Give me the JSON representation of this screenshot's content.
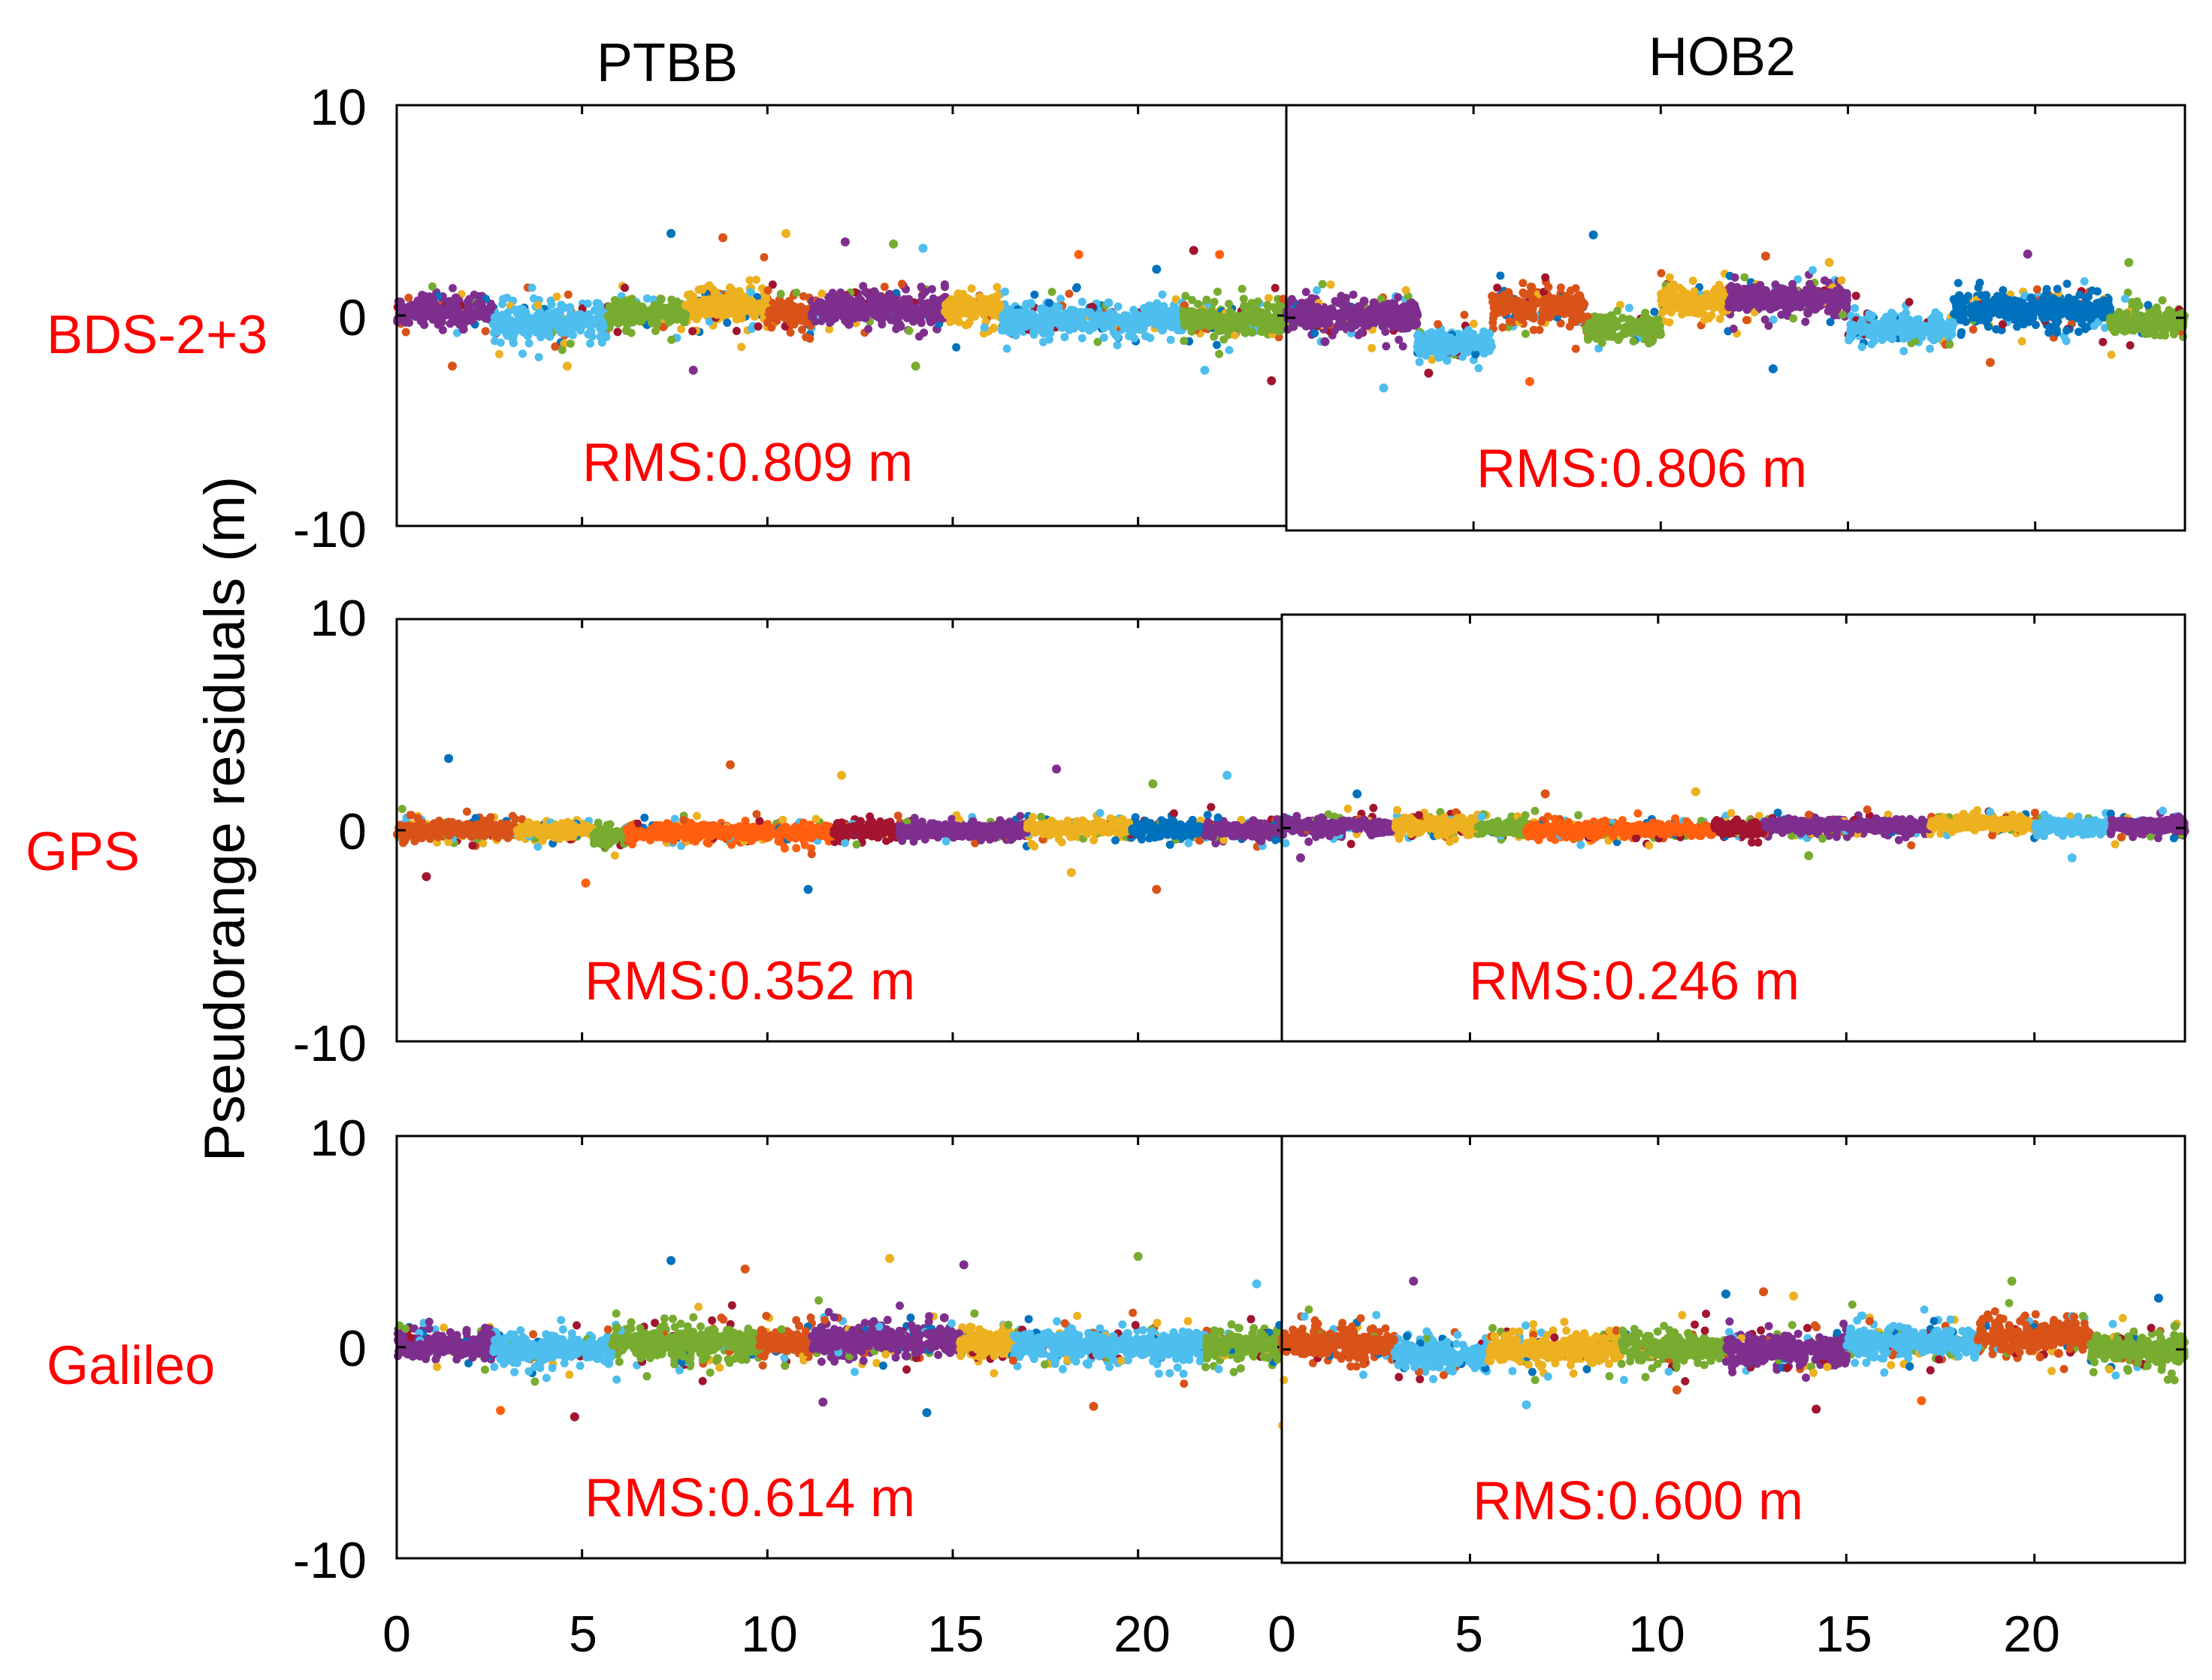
{
  "figure": {
    "ylabel": "Pseudorange residuals (m)",
    "columns": [
      "PTBB",
      "HOB2"
    ],
    "rows": [
      {
        "label": "BDS-2+3",
        "rms": [
          "RMS:0.809 m",
          "RMS:0.806 m"
        ]
      },
      {
        "label": "GPS",
        "rms": [
          "RMS:0.352 m",
          "RMS:0.246 m"
        ]
      },
      {
        "label": "Galileo",
        "rms": [
          "RMS:0.614 m",
          "RMS:0.600 m"
        ]
      }
    ],
    "colors": {
      "label": "#ff0000",
      "axis": "#000000",
      "series": [
        "#0072BD",
        "#D95319",
        "#EDB120",
        "#7E2F8E",
        "#77AC30",
        "#4DBEEE",
        "#A2142F",
        "#FF5F0E"
      ]
    }
  },
  "chart_data": [
    {
      "type": "scatter",
      "station": "PTBB",
      "system": "BDS-2+3",
      "xlabel": "",
      "ylabel": "Pseudorange residuals (m)",
      "xlim": [
        0,
        24
      ],
      "ylim": [
        -10,
        10
      ],
      "xticks": [
        0,
        5,
        10,
        15,
        20
      ],
      "yticks": [
        -10,
        0,
        10
      ],
      "rms": 0.809,
      "segments": [
        {
          "x0": 0.0,
          "x1": 2.6,
          "center": 0.2,
          "spread": 0.85,
          "color": 3
        },
        {
          "x0": 2.6,
          "x1": 5.7,
          "center": -0.3,
          "spread": 0.9,
          "color": 5
        },
        {
          "x0": 5.7,
          "x1": 7.8,
          "center": 0.1,
          "spread": 0.8,
          "color": 4
        },
        {
          "x0": 7.8,
          "x1": 10.0,
          "center": 0.5,
          "spread": 0.9,
          "color": 2
        },
        {
          "x0": 10.0,
          "x1": 11.2,
          "center": 0.2,
          "spread": 0.85,
          "color": 1
        },
        {
          "x0": 11.2,
          "x1": 14.8,
          "center": 0.3,
          "spread": 0.9,
          "color": 3
        },
        {
          "x0": 14.8,
          "x1": 16.3,
          "center": 0.3,
          "spread": 0.8,
          "color": 2
        },
        {
          "x0": 16.3,
          "x1": 21.2,
          "center": -0.2,
          "spread": 0.75,
          "color": 5
        },
        {
          "x0": 21.2,
          "x1": 24.0,
          "center": -0.2,
          "spread": 0.85,
          "color": 4
        }
      ],
      "outliers": [
        [
          7.4,
          3.9
        ],
        [
          8.8,
          3.7
        ],
        [
          10.5,
          3.9
        ],
        [
          12.1,
          3.5
        ],
        [
          13.4,
          3.4
        ],
        [
          14.2,
          3.2
        ],
        [
          21.5,
          3.1
        ],
        [
          18.4,
          2.9
        ],
        [
          20.5,
          2.2
        ],
        [
          1.5,
          -2.4
        ],
        [
          4.6,
          -2.4
        ],
        [
          8.0,
          -2.6
        ],
        [
          14.0,
          -2.4
        ],
        [
          21.8,
          -2.6
        ],
        [
          23.6,
          -3.1
        ],
        [
          22.2,
          2.9
        ]
      ]
    },
    {
      "type": "scatter",
      "station": "HOB2",
      "system": "BDS-2+3",
      "xlabel": "",
      "ylabel": "",
      "xlim": [
        0,
        24
      ],
      "ylim": [
        -10,
        10
      ],
      "xticks": [
        0,
        5,
        10,
        15,
        20
      ],
      "yticks": [
        -10,
        0,
        10
      ],
      "rms": 0.806,
      "segments": [
        {
          "x0": 0.0,
          "x1": 3.5,
          "center": 0.1,
          "spread": 0.85,
          "color": 3
        },
        {
          "x0": 3.5,
          "x1": 5.5,
          "center": -1.2,
          "spread": 0.7,
          "color": 5
        },
        {
          "x0": 5.5,
          "x1": 8.0,
          "center": 0.6,
          "spread": 0.9,
          "color": 1
        },
        {
          "x0": 8.0,
          "x1": 10.0,
          "center": -0.5,
          "spread": 0.7,
          "color": 4
        },
        {
          "x0": 10.0,
          "x1": 11.8,
          "center": 0.8,
          "spread": 0.85,
          "color": 2
        },
        {
          "x0": 11.8,
          "x1": 15.0,
          "center": 0.9,
          "spread": 0.85,
          "color": 3
        },
        {
          "x0": 15.0,
          "x1": 17.8,
          "center": -0.5,
          "spread": 0.7,
          "color": 5
        },
        {
          "x0": 17.8,
          "x1": 22.0,
          "center": 0.4,
          "spread": 0.85,
          "color": 0
        },
        {
          "x0": 22.0,
          "x1": 24.0,
          "center": -0.2,
          "spread": 0.75,
          "color": 4
        }
      ],
      "outliers": [
        [
          8.2,
          3.9
        ],
        [
          12.8,
          2.9
        ],
        [
          14.5,
          2.6
        ],
        [
          19.8,
          3.0
        ],
        [
          22.5,
          2.6
        ],
        [
          2.6,
          -3.3
        ],
        [
          3.8,
          -2.6
        ],
        [
          6.5,
          -3.0
        ],
        [
          13.0,
          -2.4
        ],
        [
          18.8,
          -2.1
        ]
      ]
    },
    {
      "type": "scatter",
      "station": "PTBB",
      "system": "GPS",
      "xlabel": "",
      "ylabel": "",
      "xlim": [
        0,
        24
      ],
      "ylim": [
        -10,
        10
      ],
      "xticks": [
        0,
        5,
        10,
        15,
        20
      ],
      "yticks": [
        -10,
        0,
        10
      ],
      "rms": 0.352,
      "segments": [
        {
          "x0": 0.0,
          "x1": 3.2,
          "center": 0.0,
          "spread": 0.45,
          "color": 1
        },
        {
          "x0": 3.2,
          "x1": 5.3,
          "center": 0.0,
          "spread": 0.45,
          "color": 2
        },
        {
          "x0": 5.3,
          "x1": 6.2,
          "center": -0.3,
          "spread": 0.5,
          "color": 4
        },
        {
          "x0": 6.2,
          "x1": 11.8,
          "center": -0.1,
          "spread": 0.45,
          "color": 7
        },
        {
          "x0": 11.8,
          "x1": 13.5,
          "center": 0.0,
          "spread": 0.45,
          "color": 6
        },
        {
          "x0": 13.5,
          "x1": 17.0,
          "center": 0.0,
          "spread": 0.45,
          "color": 3
        },
        {
          "x0": 17.0,
          "x1": 19.8,
          "center": 0.1,
          "spread": 0.45,
          "color": 2
        },
        {
          "x0": 19.8,
          "x1": 21.8,
          "center": 0.0,
          "spread": 0.45,
          "color": 0
        },
        {
          "x0": 21.8,
          "x1": 24.0,
          "center": 0.0,
          "spread": 0.5,
          "color": 3
        }
      ],
      "outliers": [
        [
          1.4,
          3.4
        ],
        [
          9.0,
          3.1
        ],
        [
          12.0,
          2.6
        ],
        [
          17.8,
          2.9
        ],
        [
          20.4,
          2.2
        ],
        [
          22.4,
          2.6
        ],
        [
          0.8,
          -2.2
        ],
        [
          5.1,
          -2.5
        ],
        [
          11.1,
          -2.8
        ],
        [
          20.5,
          -2.8
        ],
        [
          18.2,
          -2.0
        ]
      ]
    },
    {
      "type": "scatter",
      "station": "HOB2",
      "system": "GPS",
      "xlabel": "",
      "ylabel": "",
      "xlim": [
        0,
        24
      ],
      "ylim": [
        -10,
        10
      ],
      "xticks": [
        0,
        5,
        10,
        15,
        20
      ],
      "yticks": [
        -10,
        0,
        10
      ],
      "rms": 0.246,
      "segments": [
        {
          "x0": 0.0,
          "x1": 3.0,
          "center": 0.1,
          "spread": 0.4,
          "color": 3
        },
        {
          "x0": 3.0,
          "x1": 5.2,
          "center": 0.1,
          "spread": 0.45,
          "color": 2
        },
        {
          "x0": 5.2,
          "x1": 6.5,
          "center": 0.0,
          "spread": 0.4,
          "color": 4
        },
        {
          "x0": 6.5,
          "x1": 11.5,
          "center": -0.1,
          "spread": 0.4,
          "color": 7
        },
        {
          "x0": 11.5,
          "x1": 12.8,
          "center": 0.0,
          "spread": 0.4,
          "color": 6
        },
        {
          "x0": 12.8,
          "x1": 17.2,
          "center": 0.1,
          "spread": 0.4,
          "color": 3
        },
        {
          "x0": 17.2,
          "x1": 20.0,
          "center": 0.2,
          "spread": 0.4,
          "color": 2
        },
        {
          "x0": 20.0,
          "x1": 22.0,
          "center": 0.1,
          "spread": 0.4,
          "color": 5
        },
        {
          "x0": 22.0,
          "x1": 24.0,
          "center": 0.1,
          "spread": 0.45,
          "color": 3
        }
      ],
      "outliers": [
        [
          2.0,
          1.6
        ],
        [
          7.0,
          1.6
        ],
        [
          11.0,
          1.7
        ],
        [
          0.5,
          -1.4
        ],
        [
          14.0,
          -1.3
        ],
        [
          21.0,
          -1.4
        ]
      ]
    },
    {
      "type": "scatter",
      "station": "PTBB",
      "system": "Galileo",
      "xlabel": "",
      "ylabel": "",
      "xlim": [
        0,
        24
      ],
      "ylim": [
        -10,
        10
      ],
      "xticks": [
        0,
        5,
        10,
        15,
        20
      ],
      "yticks": [
        -10,
        0,
        10
      ],
      "rms": 0.614,
      "segments": [
        {
          "x0": 0.0,
          "x1": 2.6,
          "center": 0.1,
          "spread": 0.7,
          "color": 3
        },
        {
          "x0": 2.6,
          "x1": 5.8,
          "center": -0.1,
          "spread": 0.8,
          "color": 5
        },
        {
          "x0": 5.8,
          "x1": 9.8,
          "center": 0.2,
          "spread": 0.85,
          "color": 4
        },
        {
          "x0": 9.8,
          "x1": 11.2,
          "center": 0.2,
          "spread": 0.8,
          "color": 1
        },
        {
          "x0": 11.2,
          "x1": 15.2,
          "center": 0.3,
          "spread": 0.85,
          "color": 3
        },
        {
          "x0": 15.2,
          "x1": 16.6,
          "center": 0.2,
          "spread": 0.8,
          "color": 2
        },
        {
          "x0": 16.6,
          "x1": 21.8,
          "center": 0.1,
          "spread": 0.8,
          "color": 5
        },
        {
          "x0": 21.8,
          "x1": 24.0,
          "center": 0.1,
          "spread": 0.85,
          "color": 4
        }
      ],
      "outliers": [
        [
          7.4,
          4.1
        ],
        [
          9.4,
          3.7
        ],
        [
          13.3,
          4.2
        ],
        [
          15.3,
          3.9
        ],
        [
          20.0,
          4.3
        ],
        [
          23.2,
          3.0
        ],
        [
          4.8,
          -3.3
        ],
        [
          2.8,
          -3.0
        ],
        [
          14.3,
          -3.1
        ],
        [
          18.8,
          -2.8
        ],
        [
          23.9,
          -3.7
        ],
        [
          11.5,
          -2.6
        ]
      ]
    },
    {
      "type": "scatter",
      "station": "HOB2",
      "system": "Galileo",
      "xlabel": "",
      "ylabel": "",
      "xlim": [
        0,
        24
      ],
      "ylim": [
        -10,
        10
      ],
      "xticks": [
        0,
        5,
        10,
        15,
        20
      ],
      "yticks": [
        -10,
        0,
        10
      ],
      "rms": 0.6,
      "segments": [
        {
          "x0": 0.0,
          "x1": 3.0,
          "center": 0.3,
          "spread": 0.85,
          "color": 1
        },
        {
          "x0": 3.0,
          "x1": 5.5,
          "center": -0.3,
          "spread": 0.75,
          "color": 5
        },
        {
          "x0": 5.5,
          "x1": 9.0,
          "center": 0.0,
          "spread": 0.75,
          "color": 2
        },
        {
          "x0": 9.0,
          "x1": 11.8,
          "center": 0.1,
          "spread": 0.75,
          "color": 4
        },
        {
          "x0": 11.8,
          "x1": 15.0,
          "center": 0.0,
          "spread": 0.8,
          "color": 3
        },
        {
          "x0": 15.0,
          "x1": 18.5,
          "center": 0.3,
          "spread": 0.8,
          "color": 5
        },
        {
          "x0": 18.5,
          "x1": 21.5,
          "center": 0.6,
          "spread": 0.9,
          "color": 1
        },
        {
          "x0": 21.5,
          "x1": 24.0,
          "center": 0.0,
          "spread": 0.85,
          "color": 4
        }
      ],
      "outliers": [
        [
          11.8,
          2.6
        ],
        [
          12.8,
          2.7
        ],
        [
          13.6,
          2.5
        ],
        [
          3.5,
          3.2
        ],
        [
          19.4,
          3.2
        ],
        [
          6.5,
          -2.6
        ],
        [
          14.2,
          -2.8
        ],
        [
          17.0,
          -2.4
        ],
        [
          23.3,
          2.4
        ],
        [
          10.5,
          -1.9
        ]
      ]
    }
  ]
}
